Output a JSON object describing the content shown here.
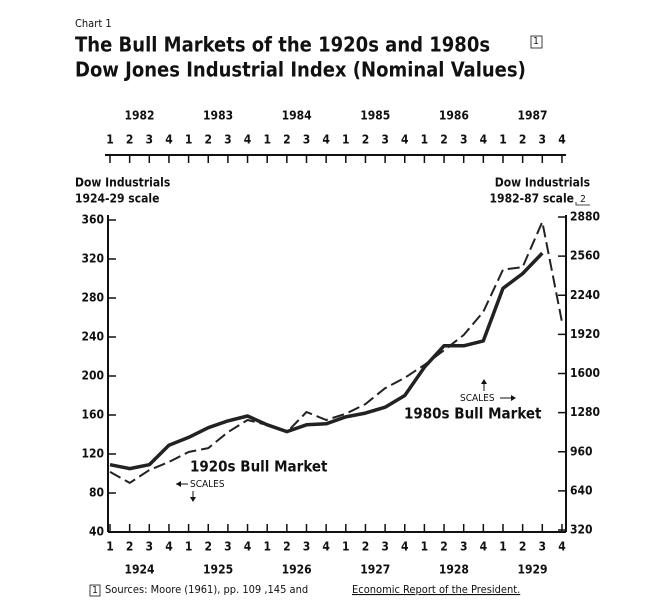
{
  "chart_data": {
    "type": "line",
    "kicker": "Chart 1",
    "title": "The Bull Markets of the 1920s and 1980s",
    "subtitle": "Dow Jones Industrial Index (Nominal Values)",
    "title_footnote": "1",
    "categories": [
      "1",
      "2",
      "3",
      "4",
      "1",
      "2",
      "3",
      "4",
      "1",
      "2",
      "3",
      "4",
      "1",
      "2",
      "3",
      "4",
      "1",
      "2",
      "3",
      "4",
      "1",
      "2",
      "3",
      "4"
    ],
    "top_years": [
      "1982",
      "1983",
      "1984",
      "1985",
      "1986",
      "1987"
    ],
    "bottom_years": [
      "1924",
      "1925",
      "1926",
      "1927",
      "1928",
      "1929"
    ],
    "y_label": [
      "Dow Industrials",
      "1924-29 scale"
    ],
    "y2_label": [
      "Dow Industrials",
      "1982-87 scale"
    ],
    "y2_label_footnote": "2",
    "ylim": [
      40,
      360
    ],
    "yticks": [
      40,
      80,
      120,
      160,
      200,
      240,
      280,
      320,
      360
    ],
    "y2lim": [
      320,
      2880
    ],
    "y2ticks": [
      320,
      640,
      960,
      1280,
      1600,
      1920,
      2240,
      2560,
      2880
    ],
    "series": [
      {
        "name": "1920s Bull Market",
        "color": "#222222",
        "style": "solid",
        "values": [
          109,
          105,
          109,
          129,
          137,
          147,
          154,
          159,
          150,
          143,
          150,
          151,
          158,
          162,
          168,
          180,
          209,
          231,
          231,
          236,
          290,
          305,
          326,
          null
        ]
      },
      {
        "name": "1980s Bull Market",
        "color": "#222222",
        "style": "dashed",
        "axis": "y2",
        "values": [
          795,
          705,
          810,
          876,
          958,
          990,
          1120,
          1220,
          1180,
          1120,
          1285,
          1220,
          1270,
          1350,
          1480,
          1565,
          1670,
          1790,
          1915,
          2105,
          2450,
          2470,
          2840,
          2020
        ]
      }
    ],
    "annotations": [
      "SCALES",
      "SCALES"
    ],
    "footnote": {
      "marker": "1",
      "text": "Sources: Moore (1961), pp. 109 ,145 and",
      "underlined": "Economic Report of the President."
    }
  }
}
